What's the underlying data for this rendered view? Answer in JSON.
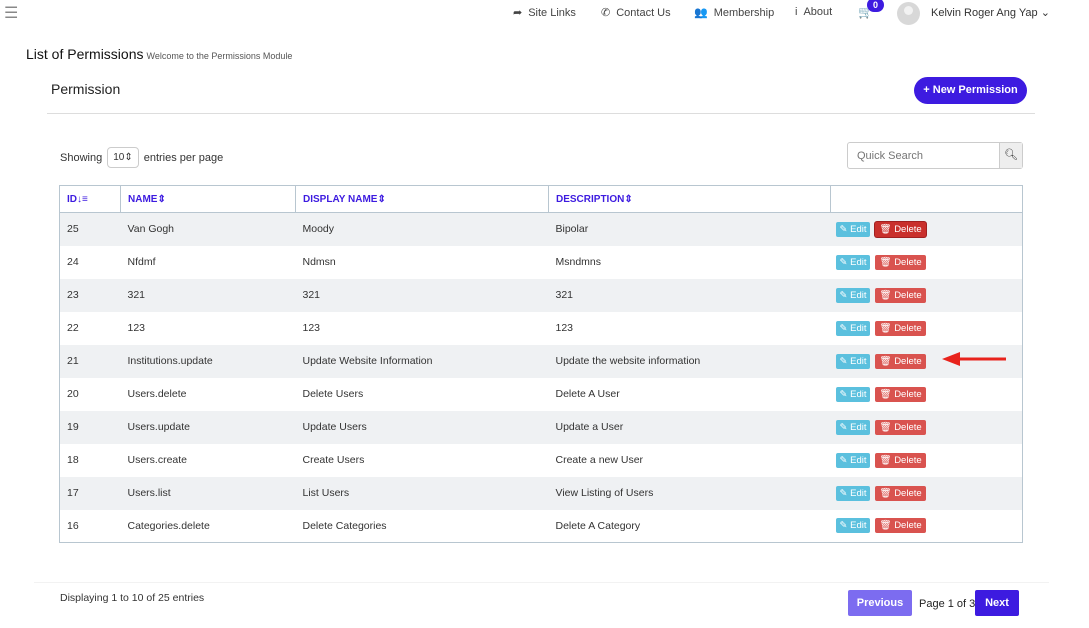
{
  "nav": {
    "site_links": "Site Links",
    "contact": "Contact Us",
    "membership": "Membership",
    "about": "About",
    "cart_count": "0",
    "user": "Kelvin Roger Ang Yap"
  },
  "page": {
    "title": "List of Permissions",
    "subtitle": "Welcome to the Permissions Module",
    "section": "Permission",
    "new_button": "+ New Permission"
  },
  "controls": {
    "showing": "Showing",
    "per_page": "10",
    "entries_label": "entries per page",
    "search_placeholder": "Quick Search"
  },
  "table": {
    "headers": [
      "ID",
      "NAME",
      "DISPLAY NAME",
      "DESCRIPTION"
    ],
    "rows": [
      {
        "id": "25",
        "name": "Van Gogh",
        "display": "Moody",
        "desc": "Bipolar"
      },
      {
        "id": "24",
        "name": "Nfdmf",
        "display": "Ndmsn",
        "desc": "Msndmns"
      },
      {
        "id": "23",
        "name": "321",
        "display": "321",
        "desc": "321"
      },
      {
        "id": "22",
        "name": "123",
        "display": "123",
        "desc": "123"
      },
      {
        "id": "21",
        "name": "Institutions.update",
        "display": "Update Website Information",
        "desc": "Update the website information"
      },
      {
        "id": "20",
        "name": "Users.delete",
        "display": "Delete Users",
        "desc": "Delete A User"
      },
      {
        "id": "19",
        "name": "Users.update",
        "display": "Update Users",
        "desc": "Update a User"
      },
      {
        "id": "18",
        "name": "Users.create",
        "display": "Create Users",
        "desc": "Create a new User"
      },
      {
        "id": "17",
        "name": "Users.list",
        "display": "List Users",
        "desc": "View Listing of Users"
      },
      {
        "id": "16",
        "name": "Categories.delete",
        "display": "Delete Categories",
        "desc": "Delete A Category"
      }
    ],
    "edit_label": "Edit",
    "delete_label": "Delete"
  },
  "footer": {
    "displaying": "Displaying 1 to 10 of 25 entries",
    "previous": "Previous",
    "page_info": "Page 1 of 3",
    "next": "Next"
  },
  "colors": {
    "accent": "#3d1be0",
    "edit": "#5bc0de",
    "delete": "#d9534f",
    "annotation_arrow": "#e8231c"
  }
}
